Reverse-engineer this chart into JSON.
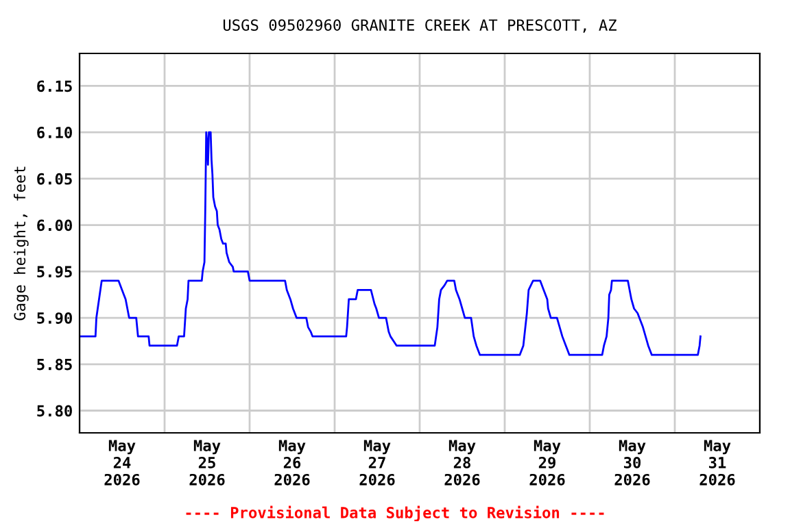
{
  "chart_data": {
    "type": "line",
    "title": "USGS 09502960 GRANITE CREEK AT PRESCOTT, AZ",
    "ylabel": "Gage height, feet",
    "annotations": [
      "---- Provisional Data Subject to Revision ----"
    ],
    "series": [
      {
        "color": "#0000ff",
        "x": [
          "2026-05-24T00:00",
          "2026-05-24T04:30",
          "2026-05-24T04:45",
          "2026-05-24T05:30",
          "2026-05-24T06:15",
          "2026-05-24T11:00",
          "2026-05-24T12:00",
          "2026-05-24T13:00",
          "2026-05-24T14:00",
          "2026-05-24T16:00",
          "2026-05-24T16:30",
          "2026-05-24T19:30",
          "2026-05-24T19:45",
          "2026-05-25T03:30",
          "2026-05-25T04:00",
          "2026-05-25T05:30",
          "2026-05-25T05:45",
          "2026-05-25T06:00",
          "2026-05-25T06:30",
          "2026-05-25T06:45",
          "2026-05-25T10:30",
          "2026-05-25T10:45",
          "2026-05-25T11:15",
          "2026-05-25T11:30",
          "2026-05-25T11:45",
          "2026-05-25T12:00",
          "2026-05-25T12:15",
          "2026-05-25T12:30",
          "2026-05-25T13:00",
          "2026-05-25T13:15",
          "2026-05-25T13:30",
          "2026-05-25T13:45",
          "2026-05-25T14:15",
          "2026-05-25T14:45",
          "2026-05-25T15:00",
          "2026-05-25T15:30",
          "2026-05-25T16:00",
          "2026-05-25T16:30",
          "2026-05-25T17:15",
          "2026-05-25T17:30",
          "2026-05-25T18:15",
          "2026-05-25T19:15",
          "2026-05-25T19:30",
          "2026-05-25T23:30",
          "2026-05-26T00:00",
          "2026-05-26T10:00",
          "2026-05-26T10:30",
          "2026-05-26T11:30",
          "2026-05-26T12:15",
          "2026-05-26T13:15",
          "2026-05-26T16:00",
          "2026-05-26T16:15",
          "2026-05-26T16:30",
          "2026-05-26T17:15",
          "2026-05-26T17:45",
          "2026-05-27T03:15",
          "2026-05-27T03:30",
          "2026-05-27T04:00",
          "2026-05-27T06:00",
          "2026-05-27T06:30",
          "2026-05-27T10:15",
          "2026-05-27T11:15",
          "2026-05-27T11:45",
          "2026-05-27T12:30",
          "2026-05-27T14:30",
          "2026-05-27T15:15",
          "2026-05-27T15:45",
          "2026-05-27T17:30",
          "2026-05-28T04:15",
          "2026-05-28T05:00",
          "2026-05-28T05:30",
          "2026-05-28T06:00",
          "2026-05-28T07:00",
          "2026-05-28T07:45",
          "2026-05-28T09:45",
          "2026-05-28T10:15",
          "2026-05-28T11:15",
          "2026-05-28T12:00",
          "2026-05-28T12:45",
          "2026-05-28T14:30",
          "2026-05-28T15:15",
          "2026-05-28T16:00",
          "2026-05-28T17:00",
          "2026-05-29T04:15",
          "2026-05-29T05:15",
          "2026-05-29T06:15",
          "2026-05-29T06:45",
          "2026-05-29T08:00",
          "2026-05-29T10:00",
          "2026-05-29T11:00",
          "2026-05-29T12:00",
          "2026-05-29T12:15",
          "2026-05-29T13:00",
          "2026-05-29T14:45",
          "2026-05-29T15:30",
          "2026-05-29T16:15",
          "2026-05-29T17:15",
          "2026-05-29T18:15",
          "2026-05-30T03:30",
          "2026-05-30T04:00",
          "2026-05-30T04:45",
          "2026-05-30T05:15",
          "2026-05-30T05:30",
          "2026-05-30T06:00",
          "2026-05-30T06:15",
          "2026-05-30T10:45",
          "2026-05-30T11:15",
          "2026-05-30T11:45",
          "2026-05-30T12:30",
          "2026-05-30T13:30",
          "2026-05-30T14:00",
          "2026-05-30T15:00",
          "2026-05-30T15:45",
          "2026-05-30T16:30",
          "2026-05-30T17:30",
          "2026-05-31T06:30",
          "2026-05-31T07:00",
          "2026-05-31T07:15"
        ],
        "values": [
          5.88,
          5.88,
          5.9,
          5.92,
          5.94,
          5.94,
          5.93,
          5.92,
          5.9,
          5.9,
          5.88,
          5.88,
          5.87,
          5.87,
          5.88,
          5.88,
          5.895,
          5.91,
          5.92,
          5.94,
          5.94,
          5.95,
          5.96,
          6.02,
          6.1,
          6.09,
          6.065,
          6.1,
          6.1,
          6.07,
          6.055,
          6.03,
          6.02,
          6.015,
          6.0,
          5.995,
          5.985,
          5.98,
          5.98,
          5.97,
          5.96,
          5.955,
          5.95,
          5.95,
          5.94,
          5.94,
          5.93,
          5.92,
          5.91,
          5.9,
          5.9,
          5.895,
          5.89,
          5.885,
          5.88,
          5.88,
          5.89,
          5.92,
          5.92,
          5.93,
          5.93,
          5.915,
          5.91,
          5.9,
          5.9,
          5.885,
          5.88,
          5.87,
          5.87,
          5.89,
          5.92,
          5.93,
          5.935,
          5.94,
          5.94,
          5.93,
          5.92,
          5.91,
          5.9,
          5.9,
          5.88,
          5.87,
          5.86,
          5.86,
          5.87,
          5.905,
          5.93,
          5.94,
          5.94,
          5.93,
          5.92,
          5.91,
          5.9,
          5.9,
          5.89,
          5.88,
          5.87,
          5.86,
          5.86,
          5.87,
          5.88,
          5.9,
          5.925,
          5.93,
          5.94,
          5.94,
          5.93,
          5.92,
          5.91,
          5.905,
          5.9,
          5.89,
          5.88,
          5.87,
          5.86,
          5.86,
          5.87,
          5.88
        ]
      }
    ],
    "xlim": [
      "2026-05-24T00:00",
      "2026-06-01T00:00"
    ],
    "xticks": [
      {
        "value": "2026-05-24T00:00",
        "label": null
      },
      {
        "value": "2026-05-24T12:00",
        "label": "May\n24\n2026"
      },
      {
        "value": "2026-05-25T00:00",
        "label": null
      },
      {
        "value": "2026-05-25T12:00",
        "label": "May\n25\n2026"
      },
      {
        "value": "2026-05-26T00:00",
        "label": null
      },
      {
        "value": "2026-05-26T12:00",
        "label": "May\n26\n2026"
      },
      {
        "value": "2026-05-27T00:00",
        "label": null
      },
      {
        "value": "2026-05-27T12:00",
        "label": "May\n27\n2026"
      },
      {
        "value": "2026-05-28T00:00",
        "label": null
      },
      {
        "value": "2026-05-28T12:00",
        "label": "May\n28\n2026"
      },
      {
        "value": "2026-05-29T00:00",
        "label": null
      },
      {
        "value": "2026-05-29T12:00",
        "label": "May\n29\n2026"
      },
      {
        "value": "2026-05-30T00:00",
        "label": null
      },
      {
        "value": "2026-05-30T12:00",
        "label": "May\n30\n2026"
      },
      {
        "value": "2026-05-31T00:00",
        "label": null
      },
      {
        "value": "2026-05-31T12:00",
        "label": "May\n31\n2026"
      },
      {
        "value": "2026-06-01T00:00",
        "label": null
      }
    ],
    "ylim": [
      5.776,
      6.185
    ],
    "yticks": [
      {
        "value": 5.8,
        "label": "5.80"
      },
      {
        "value": 5.85,
        "label": "5.85"
      },
      {
        "value": 5.9,
        "label": "5.90"
      },
      {
        "value": 5.95,
        "label": "5.95"
      },
      {
        "value": 6.0,
        "label": "6.00"
      },
      {
        "value": 6.05,
        "label": "6.05"
      },
      {
        "value": 6.1,
        "label": "6.10"
      },
      {
        "value": 6.15,
        "label": "6.15"
      }
    ],
    "grid": true
  }
}
